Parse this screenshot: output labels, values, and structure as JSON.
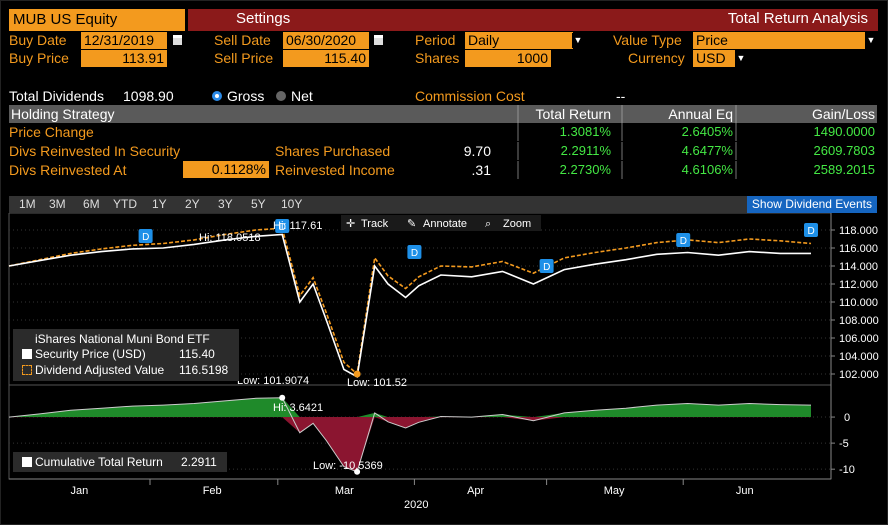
{
  "title_bar": {
    "ticker": "MUB US Equity",
    "settings": "Settings",
    "analysis": "Total Return Analysis"
  },
  "inputs": {
    "buy_date_label": "Buy Date",
    "buy_date": "12/31/2019",
    "sell_date_label": "Sell Date",
    "sell_date": "06/30/2020",
    "period_label": "Period",
    "period": "Daily",
    "value_type_label": "Value Type",
    "value_type": "Price",
    "buy_price_label": "Buy Price",
    "buy_price": "113.91",
    "sell_price_label": "Sell Price",
    "sell_price": "115.40",
    "shares_label": "Shares",
    "shares": "1000",
    "currency_label": "Currency",
    "currency": "USD"
  },
  "dividends": {
    "label": "Total Dividends",
    "value": "1098.90",
    "gross": "Gross",
    "net": "Net",
    "commission_label": "Commission Cost",
    "commission_value": "--"
  },
  "table": {
    "headers": [
      "Holding Strategy",
      "Total Return",
      "Annual Eq",
      "Gain/Loss"
    ],
    "rows": [
      {
        "label": "Price Change",
        "total_return": "1.3081%",
        "annual_eq": "2.6405%",
        "gain_loss": "1490.0000"
      },
      {
        "label": "Divs Reinvested In Security",
        "mid_label": "Shares Purchased",
        "mid_value": "9.70",
        "total_return": "2.2911%",
        "annual_eq": "4.6477%",
        "gain_loss": "2609.7803"
      },
      {
        "label": "Divs Reinvested At",
        "rate": "0.1128%",
        "mid_label": "Reinvested Income",
        "mid_value": ".31",
        "total_return": "2.2730%",
        "annual_eq": "4.6106%",
        "gain_loss": "2589.2015"
      }
    ]
  },
  "periods": [
    "1M",
    "3M",
    "6M",
    "YTD",
    "1Y",
    "2Y",
    "3Y",
    "5Y",
    "10Y"
  ],
  "show_dividend_events": "Show Dividend Events",
  "chart_tools": {
    "track": "Track",
    "annotate": "Annotate",
    "zoom": "Zoom"
  },
  "colors": {
    "orange": "#f39a1e",
    "title_red": "#8b1a1a",
    "green": "#44e844",
    "positive_area": "#1f8a2a",
    "negative_area": "#8b1530"
  },
  "icons": {
    "calendar": "calendar-icon",
    "dropdown": "chevron-down-icon",
    "radio": "radio-icon",
    "dividend_marker": "dividend-marker-icon"
  },
  "chart_data": [
    {
      "type": "line",
      "x_labels": [
        "Jan",
        "Feb",
        "Mar",
        "Apr",
        "May",
        "Jun"
      ],
      "x_axis_year": "2020",
      "x": [
        "2019-12-31",
        "2020-01-07",
        "2020-01-14",
        "2020-01-21",
        "2020-01-28",
        "2020-02-04",
        "2020-02-11",
        "2020-02-18",
        "2020-02-25",
        "2020-03-02",
        "2020-03-06",
        "2020-03-09",
        "2020-03-12",
        "2020-03-16",
        "2020-03-19",
        "2020-03-23",
        "2020-03-26",
        "2020-03-30",
        "2020-04-02",
        "2020-04-07",
        "2020-04-14",
        "2020-04-21",
        "2020-04-28",
        "2020-05-05",
        "2020-05-12",
        "2020-05-19",
        "2020-05-26",
        "2020-06-02",
        "2020-06-09",
        "2020-06-16",
        "2020-06-23",
        "2020-06-30"
      ],
      "series": [
        {
          "name": "Security Price (USD)",
          "last_value": "115.40",
          "values": [
            114.0,
            114.6,
            115.2,
            115.6,
            115.9,
            116.0,
            116.4,
            116.9,
            117.3,
            117.5,
            110.0,
            112.0,
            108.0,
            102.5,
            101.7,
            114.0,
            112.0,
            110.5,
            111.8,
            113.0,
            112.8,
            113.4,
            112.0,
            113.6,
            114.2,
            114.7,
            115.3,
            115.5,
            115.2,
            115.6,
            115.4,
            115.4
          ]
        },
        {
          "name": "Dividend Adjusted Value",
          "last_value": "116.5198",
          "values": [
            114.0,
            114.7,
            115.4,
            115.9,
            116.3,
            116.5,
            116.9,
            117.5,
            118.0,
            118.2,
            110.7,
            112.7,
            108.8,
            103.3,
            102.0,
            114.9,
            112.9,
            111.5,
            112.8,
            114.0,
            113.9,
            114.5,
            113.2,
            114.9,
            115.5,
            116.0,
            116.6,
            116.9,
            116.6,
            117.0,
            116.8,
            116.5
          ]
        }
      ],
      "y_ticks": [
        102,
        104,
        106,
        108,
        110,
        112,
        114,
        116,
        118
      ],
      "ylim": [
        101,
        119
      ],
      "legend_title": "iShares National Muni Bond ETF",
      "annotations": {
        "hi_price": "Hi: 117.61",
        "hi_adjusted": "Hi: 118.0518",
        "low_price": "Low: 101.52",
        "low_adjusted": "Low: 101.9074"
      },
      "dividend_events": [
        "2020-01-31",
        "2020-03-02",
        "2020-04-01",
        "2020-05-01",
        "2020-06-01",
        "2020-06-30"
      ],
      "dividend_label": "D"
    },
    {
      "type": "area",
      "x": [
        "2019-12-31",
        "2020-01-07",
        "2020-01-14",
        "2020-01-21",
        "2020-01-28",
        "2020-02-04",
        "2020-02-11",
        "2020-02-18",
        "2020-02-25",
        "2020-03-02",
        "2020-03-06",
        "2020-03-09",
        "2020-03-12",
        "2020-03-16",
        "2020-03-19",
        "2020-03-23",
        "2020-03-26",
        "2020-03-30",
        "2020-04-02",
        "2020-04-07",
        "2020-04-14",
        "2020-04-21",
        "2020-04-28",
        "2020-05-05",
        "2020-05-12",
        "2020-05-19",
        "2020-05-26",
        "2020-06-02",
        "2020-06-09",
        "2020-06-16",
        "2020-06-23",
        "2020-06-30"
      ],
      "series": [
        {
          "name": "Cumulative Total Return",
          "last_value": "2.2911",
          "values": [
            0.0,
            0.6,
            1.3,
            1.7,
            2.1,
            2.3,
            2.6,
            3.1,
            3.6,
            3.7,
            -3.0,
            -1.2,
            -4.5,
            -9.5,
            -10.5,
            0.8,
            -0.9,
            -2.1,
            -1.0,
            0.1,
            0.0,
            0.5,
            -0.7,
            0.8,
            1.3,
            1.7,
            2.3,
            2.6,
            2.3,
            2.6,
            2.4,
            2.3
          ]
        }
      ],
      "y_ticks": [
        0,
        -5,
        -10
      ],
      "ylim": [
        -11.5,
        5
      ],
      "annotations": {
        "hi": "Hi: 3.6421",
        "low": "Low: -10.5369"
      }
    }
  ]
}
